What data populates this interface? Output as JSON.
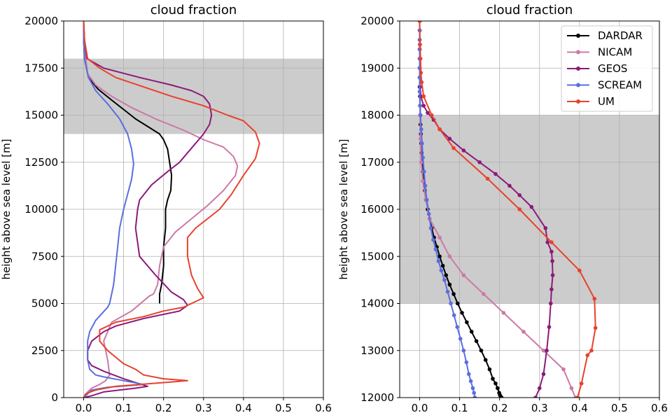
{
  "chart_data": [
    {
      "type": "line",
      "title": "cloud fraction",
      "xlabel": "",
      "ylabel": "height above sea level [m]",
      "xlim": [
        -0.05,
        0.6
      ],
      "ylim": [
        0,
        20000
      ],
      "xticks": [
        0.0,
        0.1,
        0.2,
        0.3,
        0.4,
        0.5,
        0.6
      ],
      "xtick_labels": [
        "0.0",
        "0.1",
        "0.2",
        "0.3",
        "0.4",
        "0.5",
        "0.6"
      ],
      "yticks": [
        0,
        2500,
        5000,
        7500,
        10000,
        12500,
        15000,
        17500,
        20000
      ],
      "ytick_labels": [
        "0",
        "2500",
        "5000",
        "7500",
        "10000",
        "12500",
        "15000",
        "17500",
        "20000"
      ],
      "grid": true,
      "shaded_band": [
        14000,
        18000
      ],
      "series": [
        {
          "key": "dardar",
          "color": "#000000",
          "markers": false,
          "x": [
            0,
            0,
            0.002,
            0.012,
            0.035,
            0.07,
            0.1,
            0.13,
            0.16,
            0.19,
            0.2,
            0.21,
            0.215,
            0.22,
            0.218,
            0.21,
            0.205,
            0.205,
            0.2,
            0.2,
            0.195,
            0.19,
            0.19
          ],
          "y": [
            20000,
            19000,
            18000,
            17000,
            16400,
            15800,
            15300,
            14800,
            14400,
            14000,
            13700,
            13200,
            12500,
            11800,
            11000,
            10500,
            10000,
            9000,
            8000,
            7000,
            6000,
            5500,
            5000
          ]
        },
        {
          "key": "nicam",
          "color": "#cc79a7",
          "markers": false,
          "x": [
            0,
            0.001,
            0.005,
            0.01,
            0.03,
            0.07,
            0.12,
            0.18,
            0.25,
            0.3,
            0.35,
            0.375,
            0.385,
            0.38,
            0.35,
            0.31,
            0.27,
            0.23,
            0.2,
            0.19,
            0.185,
            0.175,
            0.165,
            0.12,
            0.07,
            0.05,
            0.06,
            0.065,
            0.055,
            0.04,
            0.02,
            0.01,
            0.003,
            0.0
          ],
          "y": [
            20000,
            19000,
            18000,
            17200,
            16600,
            16000,
            15400,
            14800,
            14200,
            13700,
            13300,
            12800,
            12300,
            11800,
            11000,
            10200,
            9500,
            8800,
            8000,
            7000,
            6000,
            5500,
            5400,
            4600,
            4000,
            3000,
            2000,
            1200,
            900,
            700,
            500,
            300,
            100,
            0
          ]
        },
        {
          "key": "geos",
          "color": "#8b1a7a",
          "markers": false,
          "x": [
            0,
            0.002,
            0.008,
            0.05,
            0.14,
            0.22,
            0.27,
            0.3,
            0.315,
            0.32,
            0.315,
            0.3,
            0.28,
            0.26,
            0.24,
            0.21,
            0.17,
            0.14,
            0.135,
            0.13,
            0.14,
            0.18,
            0.22,
            0.25,
            0.26,
            0.24,
            0.15,
            0.08,
            0.05,
            0.02,
            0.01,
            0.01,
            0.02,
            0.05,
            0.1,
            0.16,
            0.13,
            0.05,
            0.02,
            0.0
          ],
          "y": [
            20000,
            19000,
            18000,
            17500,
            17000,
            16600,
            16300,
            16000,
            15600,
            15000,
            14500,
            14000,
            13500,
            13000,
            12500,
            12000,
            11300,
            10500,
            10000,
            9000,
            7500,
            6500,
            5600,
            5200,
            4900,
            4600,
            4200,
            3800,
            3500,
            3000,
            2500,
            2000,
            1700,
            1400,
            1000,
            600,
            500,
            300,
            100,
            0
          ]
        },
        {
          "key": "scream",
          "color": "#5a6ee0",
          "markers": false,
          "x": [
            0,
            0,
            0.002,
            0.012,
            0.03,
            0.06,
            0.09,
            0.11,
            0.12,
            0.125,
            0.12,
            0.11,
            0.1,
            0.09,
            0.085,
            0.08,
            0.075,
            0.07,
            0.065,
            0.06,
            0.03,
            0.015,
            0.01,
            0.01,
            0.015,
            0.03,
            0.05,
            0.1,
            0.15,
            0.06,
            0.02,
            0.01,
            0.0
          ],
          "y": [
            20000,
            19000,
            18000,
            17000,
            16300,
            15600,
            14800,
            14000,
            13200,
            12400,
            11600,
            10800,
            10000,
            9000,
            8000,
            7000,
            6000,
            5500,
            5000,
            4800,
            4100,
            3500,
            3000,
            2000,
            1500,
            1200,
            1100,
            900,
            700,
            550,
            400,
            200,
            0
          ]
        },
        {
          "key": "um",
          "color": "#e8412d",
          "markers": false,
          "x": [
            0,
            0.002,
            0.01,
            0.04,
            0.08,
            0.15,
            0.22,
            0.3,
            0.36,
            0.4,
            0.43,
            0.44,
            0.43,
            0.4,
            0.37,
            0.34,
            0.31,
            0.28,
            0.26,
            0.26,
            0.27,
            0.285,
            0.3,
            0.25,
            0.2,
            0.15,
            0.08,
            0.04,
            0.04,
            0.06,
            0.1,
            0.13,
            0.15,
            0.2,
            0.26,
            0.14,
            0.08,
            0.03,
            0.005,
            0.0
          ],
          "y": [
            20000,
            19000,
            18000,
            17500,
            17000,
            16500,
            16000,
            15500,
            15000,
            14700,
            14100,
            13500,
            12700,
            11800,
            10800,
            10000,
            9500,
            9000,
            8500,
            7500,
            6500,
            5800,
            5300,
            4800,
            4600,
            4300,
            4000,
            3600,
            3000,
            2500,
            1800,
            1500,
            1200,
            1000,
            900,
            700,
            600,
            400,
            200,
            0
          ]
        }
      ]
    },
    {
      "type": "line",
      "title": "cloud fraction",
      "xlabel": "",
      "ylabel": "height above sea level [m]",
      "xlim": [
        -0.05,
        0.6
      ],
      "ylim": [
        12000,
        20000
      ],
      "xticks": [
        0.0,
        0.1,
        0.2,
        0.3,
        0.4,
        0.5,
        0.6
      ],
      "xtick_labels": [
        "0.0",
        "0.1",
        "0.2",
        "0.3",
        "0.4",
        "0.5",
        "0.6"
      ],
      "yticks": [
        12000,
        13000,
        14000,
        15000,
        16000,
        17000,
        18000,
        19000,
        20000
      ],
      "ytick_labels": [
        "12000",
        "13000",
        "14000",
        "15000",
        "16000",
        "17000",
        "18000",
        "19000",
        "20000"
      ],
      "grid": true,
      "shaded_band": [
        14000,
        18000
      ],
      "legend_position": "top-right",
      "series": [
        {
          "key": "dardar",
          "name": "DARDAR",
          "color": "#000000",
          "markers": true,
          "x": [
            0,
            0,
            0,
            0,
            0,
            0,
            0,
            0,
            0.001,
            0.001,
            0.002,
            0.002,
            0.003,
            0.004,
            0.005,
            0.006,
            0.008,
            0.01,
            0.013,
            0.016,
            0.02,
            0.025,
            0.03,
            0.036,
            0.043,
            0.05,
            0.058,
            0.066,
            0.075,
            0.085,
            0.095,
            0.106,
            0.118,
            0.13,
            0.142,
            0.154,
            0.165,
            0.175,
            0.183,
            0.19,
            0.195,
            0.199,
            0.201,
            0.203,
            0.205
          ],
          "y": [
            20000,
            19800,
            19600,
            19400,
            19200,
            19000,
            18800,
            18600,
            18400,
            18200,
            18000,
            17800,
            17600,
            17400,
            17200,
            17000,
            16800,
            16600,
            16400,
            16200,
            16000,
            15800,
            15600,
            15400,
            15200,
            15000,
            14800,
            14600,
            14400,
            14200,
            14000,
            13800,
            13600,
            13400,
            13200,
            13000,
            12800,
            12600,
            12400,
            12300,
            12200,
            12100,
            12050,
            12020,
            12000
          ]
        },
        {
          "key": "nicam",
          "name": "NICAM",
          "color": "#cc79a7",
          "markers": true,
          "x": [
            0,
            0,
            0,
            0,
            0.001,
            0.002,
            0.004,
            0.008,
            0.015,
            0.025,
            0.05,
            0.075,
            0.11,
            0.16,
            0.21,
            0.26,
            0.31,
            0.36,
            0.38,
            0.39
          ],
          "y": [
            20000,
            19500,
            19000,
            18500,
            18000,
            17500,
            17000,
            16600,
            16200,
            15800,
            15400,
            15000,
            14600,
            14200,
            13800,
            13400,
            13000,
            12600,
            12200,
            12000
          ]
        },
        {
          "key": "geos",
          "name": "GEOS",
          "color": "#8b1a7a",
          "markers": true,
          "x": [
            0,
            0,
            0.001,
            0.003,
            0.01,
            0.02,
            0.035,
            0.05,
            0.075,
            0.11,
            0.15,
            0.19,
            0.225,
            0.25,
            0.28,
            0.315,
            0.32,
            0.33,
            0.332,
            0.333,
            0.33,
            0.328,
            0.324,
            0.318,
            0.31,
            0.3,
            0.29,
            0.285
          ],
          "y": [
            20000,
            19000,
            18600,
            18400,
            18200,
            18050,
            17900,
            17700,
            17500,
            17250,
            17000,
            16750,
            16500,
            16300,
            16050,
            15600,
            15300,
            15100,
            14900,
            14600,
            14300,
            14000,
            13500,
            13000,
            12500,
            12200,
            12000,
            11900
          ]
        },
        {
          "key": "scream",
          "name": "SCREAM",
          "color": "#5a6ee0",
          "markers": true,
          "x": [
            0,
            0,
            0,
            0,
            0,
            0,
            0,
            0,
            0.001,
            0.002,
            0.004,
            0.006,
            0.008,
            0.011,
            0.014,
            0.018,
            0.023,
            0.028,
            0.034,
            0.04,
            0.047,
            0.054,
            0.062,
            0.07,
            0.078,
            0.086,
            0.094,
            0.102,
            0.11,
            0.117,
            0.123,
            0.128,
            0.133,
            0.136,
            0.138
          ],
          "y": [
            20000,
            19800,
            19600,
            19400,
            19200,
            19000,
            18800,
            18500,
            18200,
            18000,
            17700,
            17400,
            17100,
            16800,
            16500,
            16200,
            15900,
            15600,
            15350,
            15150,
            14900,
            14700,
            14500,
            14250,
            14000,
            13750,
            13500,
            13250,
            13000,
            12750,
            12500,
            12350,
            12200,
            12100,
            12000
          ]
        },
        {
          "key": "um",
          "name": "UM",
          "color": "#e8412d",
          "markers": true,
          "x": [
            0,
            0.001,
            0.002,
            0.003,
            0.005,
            0.01,
            0.03,
            0.05,
            0.085,
            0.17,
            0.25,
            0.33,
            0.4,
            0.4375,
            0.44,
            0.43,
            0.42,
            0.405,
            0.395
          ],
          "y": [
            20000,
            19500,
            19200,
            18900,
            18700,
            18400,
            18000,
            17700,
            17300,
            16650,
            16000,
            15300,
            14700,
            14100,
            13480,
            13000,
            12900,
            12300,
            12000
          ]
        }
      ]
    }
  ]
}
